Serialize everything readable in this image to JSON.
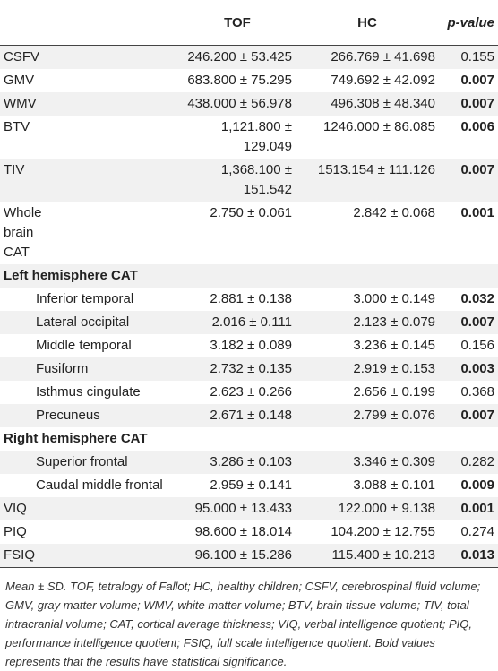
{
  "table": {
    "header": [
      "",
      "TOF",
      "HC",
      "p-value"
    ],
    "rows": [
      {
        "label": "CSFV",
        "tof": "246.200 ± 53.425",
        "hc": "266.769 ± 41.698",
        "p": "0.155",
        "bold": false
      },
      {
        "label": "GMV",
        "tof": "683.800 ± 75.295",
        "hc": "749.692 ± 42.092",
        "p": "0.007",
        "bold": true
      },
      {
        "label": "WMV",
        "tof": "438.000 ± 56.978",
        "hc": "496.308 ± 48.340",
        "p": "0.007",
        "bold": true
      },
      {
        "label": "BTV",
        "tof": "1,121.800 ± 129.049",
        "hc": "1246.000 ± 86.085",
        "p": "0.006",
        "bold": true
      },
      {
        "label": "TIV",
        "tof": "1,368.100 ± 151.542",
        "hc": "1513.154 ± 111.126",
        "p": "0.007",
        "bold": true
      },
      {
        "label": "Whole brain CAT",
        "tof": "2.750 ± 0.061",
        "hc": "2.842 ± 0.068",
        "p": "0.001",
        "bold": true
      },
      {
        "label": "Left hemisphere CAT",
        "section": true
      },
      {
        "label": "Inferior temporal",
        "tof": "2.881 ± 0.138",
        "hc": "3.000 ± 0.149",
        "p": "0.032",
        "bold": true,
        "indent": true
      },
      {
        "label": "Lateral occipital",
        "tof": "2.016 ± 0.111",
        "hc": "2.123 ± 0.079",
        "p": "0.007",
        "bold": true,
        "indent": true
      },
      {
        "label": "Middle temporal",
        "tof": "3.182 ± 0.089",
        "hc": "3.236 ± 0.145",
        "p": "0.156",
        "bold": false,
        "indent": true
      },
      {
        "label": "Fusiform",
        "tof": "2.732 ± 0.135",
        "hc": "2.919 ± 0.153",
        "p": "0.003",
        "bold": true,
        "indent": true
      },
      {
        "label": "Isthmus cingulate",
        "tof": "2.623 ± 0.266",
        "hc": "2.656 ± 0.199",
        "p": "0.368",
        "bold": false,
        "indent": true
      },
      {
        "label": "Precuneus",
        "tof": "2.671 ± 0.148",
        "hc": "2.799 ± 0.076",
        "p": "0.007",
        "bold": true,
        "indent": true
      },
      {
        "label": "Right hemisphere CAT",
        "section": true
      },
      {
        "label": "Superior frontal",
        "tof": "3.286 ± 0.103",
        "hc": "3.346 ± 0.309",
        "p": "0.282",
        "bold": false,
        "indent": true
      },
      {
        "label": "Caudal middle frontal",
        "tof": "2.959 ± 0.141",
        "hc": "3.088 ± 0.101",
        "p": "0.009",
        "bold": true,
        "indent": true
      },
      {
        "label": "VIQ",
        "tof": "95.000 ± 13.433",
        "hc": "122.000 ± 9.138",
        "p": "0.001",
        "bold": true
      },
      {
        "label": "PIQ",
        "tof": "98.600 ± 18.014",
        "hc": "104.200 ± 12.755",
        "p": "0.274",
        "bold": false
      },
      {
        "label": "FSIQ",
        "tof": "96.100 ± 15.286",
        "hc": "115.400 ± 10.213",
        "p": "0.013",
        "bold": true
      }
    ]
  },
  "footnote": "Mean ± SD. TOF, tetralogy of Fallot; HC, healthy children; CSFV, cerebrospinal fluid volume; GMV, gray matter volume; WMV, white matter volume; BTV, brain tissue volume; TIV, total intracranial volume; CAT, cortical average thickness; VIQ, verbal intelligence quotient; PIQ, performance intelligence quotient; FSIQ, full scale intelligence quotient. Bold values represents that the results have statistical significance."
}
